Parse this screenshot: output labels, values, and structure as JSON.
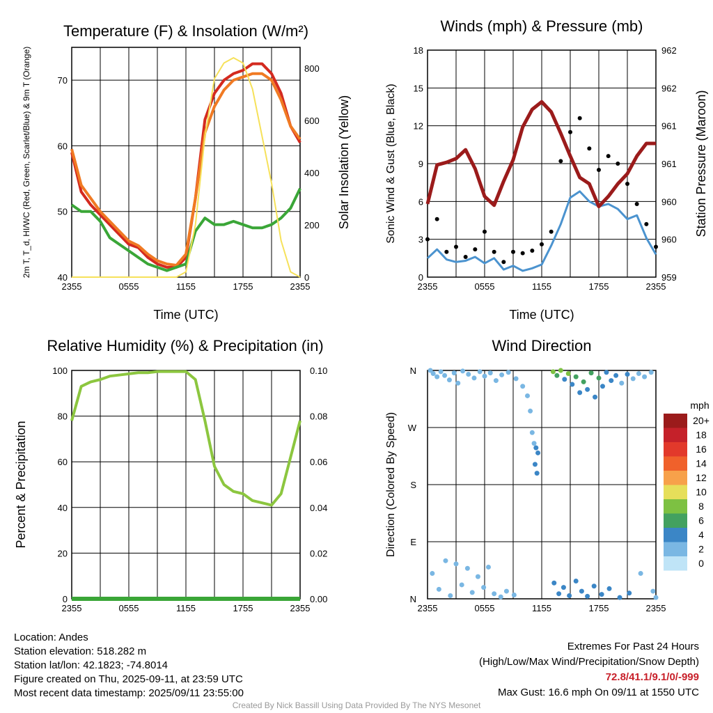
{
  "chart_data": [
    {
      "type": "line",
      "title": "Temperature (F) & Insolation (W/m²)",
      "xlabel": "Time (UTC)",
      "ylabel": "2m T, T_d, HI/WC (Red, Green, Scarlet/Blue) & 9m T (Orange)",
      "y2label": "Solar Insolation (Yellow)",
      "xticks": [
        "2355",
        "0555",
        "1155",
        "1755",
        "2355"
      ],
      "yticks": [
        40,
        50,
        60,
        70
      ],
      "y2ticks": [
        0,
        200,
        400,
        600,
        800
      ],
      "ylim": [
        40,
        75
      ],
      "y2lim": [
        0,
        880
      ],
      "x_hours": [
        0,
        1,
        2,
        3,
        4,
        5,
        6,
        7,
        8,
        9,
        10,
        11,
        12,
        13,
        14,
        15,
        16,
        17,
        18,
        19,
        20,
        21,
        22,
        23,
        24
      ],
      "series": [
        {
          "color": "#d42a1f",
          "values": [
            59,
            53,
            51,
            49.5,
            48,
            46.5,
            45,
            44.5,
            43,
            42,
            41.5,
            41.5,
            43,
            52,
            64,
            68,
            70,
            71,
            71.5,
            72.5,
            72.5,
            71,
            68,
            63,
            60.5
          ]
        },
        {
          "color": "#f07a23",
          "values": [
            59.5,
            54,
            52,
            50,
            48.5,
            47,
            45.5,
            44.8,
            43.5,
            42.5,
            42,
            41.8,
            43.5,
            52,
            62,
            66,
            68.5,
            70,
            70.5,
            71,
            71,
            70,
            67,
            63,
            61
          ]
        },
        {
          "color": "#3aa637",
          "values": [
            51,
            50,
            50,
            48.5,
            46,
            45,
            44,
            43,
            42,
            41.5,
            41,
            41.5,
            42,
            47,
            49,
            48,
            48,
            48.5,
            48,
            47.5,
            47.5,
            48,
            49,
            50.5,
            53.5
          ]
        },
        {
          "color": "#f6e15a",
          "axis": "right",
          "values": [
            0,
            0,
            0,
            0,
            0,
            0,
            0,
            0,
            0,
            0,
            0,
            0,
            20,
            200,
            540,
            760,
            820,
            840,
            820,
            720,
            540,
            360,
            140,
            20,
            0
          ]
        }
      ]
    },
    {
      "type": "line",
      "title": "Winds (mph) & Pressure (mb)",
      "xlabel": "Time (UTC)",
      "ylabel": "Sonic Wind & Gust (Blue, Black)",
      "y2label": "Station Pressure (Maroon)",
      "xticks": [
        "2355",
        "0555",
        "1155",
        "1755",
        "2355"
      ],
      "yticks": [
        0,
        3,
        6,
        9,
        12,
        15,
        18
      ],
      "y2ticks": [
        "959",
        "960",
        "960",
        "961",
        "961",
        "962",
        "962"
      ],
      "ylim": [
        0,
        18
      ],
      "x_hours": [
        0,
        1,
        2,
        3,
        4,
        5,
        6,
        7,
        8,
        9,
        10,
        11,
        12,
        13,
        14,
        15,
        16,
        17,
        18,
        19,
        20,
        21,
        22,
        23,
        24
      ],
      "series": [
        {
          "color": "#4b93cf",
          "values": [
            1.5,
            2.2,
            1.4,
            1.2,
            1.3,
            1.6,
            1.1,
            1.5,
            0.6,
            0.9,
            0.5,
            0.7,
            1,
            2.5,
            4.2,
            6.3,
            6.8,
            6,
            5.6,
            5.8,
            5.4,
            4.6,
            4.9,
            3.1,
            1.8
          ]
        },
        {
          "color": "#000000",
          "kind": "points",
          "values": [
            3,
            4.6,
            2,
            2.4,
            1.6,
            2.2,
            3.6,
            2,
            1.2,
            2,
            1.9,
            2.1,
            2.6,
            3.6,
            9.2,
            11.5,
            12.6,
            10.2,
            8.5,
            9.6,
            9,
            7.4,
            5.8,
            4.2,
            2.4
          ]
        },
        {
          "color": "#9b1b1b",
          "values": [
            5.8,
            8.9,
            9.1,
            9.4,
            10.1,
            8.6,
            6.4,
            5.7,
            7.6,
            9.3,
            11.9,
            13.3,
            13.9,
            13.1,
            11.4,
            9.6,
            7.9,
            7.4,
            5.6,
            6.4,
            7.4,
            8.2,
            9.6,
            10.6,
            10.6
          ]
        }
      ]
    },
    {
      "type": "line",
      "title": "Relative Humidity (%) & Precipitation (in)",
      "ylabel": "Percent & Precipitation",
      "xticks": [
        "2355",
        "0555",
        "1155",
        "1755",
        "2355"
      ],
      "yticks": [
        0,
        20,
        40,
        60,
        80,
        100
      ],
      "y2ticks": [
        "0.00",
        "0.02",
        "0.04",
        "0.06",
        "0.08",
        "0.10"
      ],
      "ylim": [
        0,
        100
      ],
      "x_hours": [
        0,
        1,
        2,
        3,
        4,
        5,
        6,
        7,
        8,
        9,
        10,
        11,
        12,
        13,
        14,
        15,
        16,
        17,
        18,
        19,
        20,
        21,
        22,
        23,
        24
      ],
      "series": [
        {
          "color": "#8cc63f",
          "values": [
            78,
            93,
            95,
            96,
            97.5,
            98,
            98.5,
            99,
            99,
            99.5,
            99.5,
            99.5,
            99.5,
            96,
            78,
            58,
            50,
            47,
            46,
            43,
            42,
            41,
            46,
            62,
            78
          ]
        },
        {
          "color": "#3aa637",
          "values": [
            0,
            0,
            0,
            0,
            0,
            0,
            0,
            0,
            0,
            0,
            0,
            0,
            0,
            0,
            0,
            0,
            0,
            0,
            0,
            0,
            0,
            0,
            0,
            0,
            0
          ]
        }
      ]
    },
    {
      "type": "scatter",
      "title": "Wind Direction",
      "ylabel": "Direction (Colored By Speed)",
      "xticks": [
        "2355",
        "0555",
        "1155",
        "1755",
        "2355"
      ],
      "yticks": [
        "N",
        "E",
        "S",
        "W",
        "N"
      ],
      "legend_title": "mph",
      "legend_labels": [
        "20+",
        "18",
        "16",
        "14",
        "12",
        "10",
        "8",
        "6",
        "4",
        "2",
        "0"
      ],
      "legend_colors": [
        "#9b1b1b",
        "#c5212a",
        "#e2392b",
        "#f0612b",
        "#f7a14a",
        "#e6df5a",
        "#7dc142",
        "#43a160",
        "#3b86c6",
        "#7ab7e3",
        "#bfe4f7"
      ],
      "points": [
        {
          "x": 0.3,
          "y": 360,
          "s": 1
        },
        {
          "x": 0.6,
          "y": 355,
          "s": 2
        },
        {
          "x": 1.0,
          "y": 350,
          "s": 1
        },
        {
          "x": 1.4,
          "y": 358,
          "s": 2
        },
        {
          "x": 1.8,
          "y": 352,
          "s": 1
        },
        {
          "x": 2.3,
          "y": 345,
          "s": 1
        },
        {
          "x": 2.8,
          "y": 356,
          "s": 2
        },
        {
          "x": 3.2,
          "y": 340,
          "s": 1
        },
        {
          "x": 3.7,
          "y": 359,
          "s": 1
        },
        {
          "x": 4.3,
          "y": 354,
          "s": 2
        },
        {
          "x": 4.9,
          "y": 348,
          "s": 1
        },
        {
          "x": 5.5,
          "y": 358,
          "s": 1
        },
        {
          "x": 6.0,
          "y": 351,
          "s": 1
        },
        {
          "x": 6.6,
          "y": 356,
          "s": 2
        },
        {
          "x": 7.2,
          "y": 344,
          "s": 1
        },
        {
          "x": 7.8,
          "y": 353,
          "s": 1
        },
        {
          "x": 8.5,
          "y": 357,
          "s": 2
        },
        {
          "x": 9.3,
          "y": 347,
          "s": 1
        },
        {
          "x": 10.0,
          "y": 335,
          "s": 1
        },
        {
          "x": 10.5,
          "y": 320,
          "s": 1
        },
        {
          "x": 10.8,
          "y": 296,
          "s": 1
        },
        {
          "x": 11.0,
          "y": 262,
          "s": 1
        },
        {
          "x": 11.2,
          "y": 245,
          "s": 2
        },
        {
          "x": 11.4,
          "y": 238,
          "s": 3
        },
        {
          "x": 11.6,
          "y": 230,
          "s": 3
        },
        {
          "x": 11.3,
          "y": 212,
          "s": 3
        },
        {
          "x": 11.5,
          "y": 198,
          "s": 3
        },
        {
          "x": 13.2,
          "y": 358,
          "s": 7
        },
        {
          "x": 13.6,
          "y": 352,
          "s": 6
        },
        {
          "x": 14.0,
          "y": 360,
          "s": 8
        },
        {
          "x": 14.4,
          "y": 346,
          "s": 4
        },
        {
          "x": 14.8,
          "y": 355,
          "s": 7
        },
        {
          "x": 15.2,
          "y": 338,
          "s": 3
        },
        {
          "x": 15.6,
          "y": 350,
          "s": 6
        },
        {
          "x": 16.0,
          "y": 325,
          "s": 4
        },
        {
          "x": 16.4,
          "y": 342,
          "s": 5
        },
        {
          "x": 16.8,
          "y": 330,
          "s": 3
        },
        {
          "x": 17.2,
          "y": 356,
          "s": 6
        },
        {
          "x": 17.6,
          "y": 318,
          "s": 4
        },
        {
          "x": 18.0,
          "y": 348,
          "s": 5
        },
        {
          "x": 18.4,
          "y": 335,
          "s": 4
        },
        {
          "x": 18.8,
          "y": 357,
          "s": 3
        },
        {
          "x": 19.3,
          "y": 344,
          "s": 4
        },
        {
          "x": 19.8,
          "y": 352,
          "s": 3
        },
        {
          "x": 20.4,
          "y": 340,
          "s": 2
        },
        {
          "x": 21.0,
          "y": 354,
          "s": 3
        },
        {
          "x": 21.6,
          "y": 347,
          "s": 2
        },
        {
          "x": 22.2,
          "y": 355,
          "s": 2
        },
        {
          "x": 22.8,
          "y": 350,
          "s": 2
        },
        {
          "x": 23.5,
          "y": 357,
          "s": 1
        },
        {
          "x": 0.5,
          "y": 40,
          "s": 1
        },
        {
          "x": 1.2,
          "y": 15,
          "s": 1
        },
        {
          "x": 1.9,
          "y": 60,
          "s": 1
        },
        {
          "x": 2.4,
          "y": 5,
          "s": 1
        },
        {
          "x": 3.0,
          "y": 55,
          "s": 1
        },
        {
          "x": 3.6,
          "y": 22,
          "s": 1
        },
        {
          "x": 4.2,
          "y": 48,
          "s": 1
        },
        {
          "x": 4.7,
          "y": 10,
          "s": 2
        },
        {
          "x": 5.3,
          "y": 35,
          "s": 1
        },
        {
          "x": 5.9,
          "y": 18,
          "s": 1
        },
        {
          "x": 6.4,
          "y": 50,
          "s": 1
        },
        {
          "x": 7.0,
          "y": 8,
          "s": 1
        },
        {
          "x": 7.7,
          "y": 3,
          "s": 2
        },
        {
          "x": 8.3,
          "y": 12,
          "s": 1
        },
        {
          "x": 9.1,
          "y": 6,
          "s": 1
        },
        {
          "x": 13.3,
          "y": 25,
          "s": 4
        },
        {
          "x": 13.8,
          "y": 8,
          "s": 4
        },
        {
          "x": 14.3,
          "y": 18,
          "s": 3
        },
        {
          "x": 14.9,
          "y": 5,
          "s": 4
        },
        {
          "x": 15.6,
          "y": 28,
          "s": 4
        },
        {
          "x": 16.2,
          "y": 12,
          "s": 4
        },
        {
          "x": 16.8,
          "y": 4,
          "s": 3
        },
        {
          "x": 17.5,
          "y": 20,
          "s": 3
        },
        {
          "x": 18.3,
          "y": 7,
          "s": 4
        },
        {
          "x": 19.1,
          "y": 16,
          "s": 3
        },
        {
          "x": 20.2,
          "y": 2,
          "s": 4
        },
        {
          "x": 21.2,
          "y": 9,
          "s": 4
        },
        {
          "x": 22.4,
          "y": 40,
          "s": 2
        },
        {
          "x": 23.7,
          "y": 12,
          "s": 1
        },
        {
          "x": 24.0,
          "y": 2,
          "s": 1
        }
      ]
    }
  ],
  "footer": {
    "location": "Location: Andes",
    "elevation": "Station elevation: 518.282 m",
    "latlon": "Station lat/lon: 42.1823; -74.8014",
    "created": "Figure created on Thu, 2025-09-11, at 23:59 UTC",
    "recent": "Most recent data timestamp: 2025/09/11 23:55:00",
    "extremes_title": "Extremes For Past 24 Hours",
    "extremes_sub": "(High/Low/Max Wind/Precipitation/Snow Depth)",
    "extremes_values": "72.8/41.1/9.1/0/-999",
    "max_gust": "Max Gust: 16.6 mph On 09/11 at 1550 UTC",
    "credit": "Created By Nick Bassill Using Data Provided By The NYS Mesonet"
  }
}
